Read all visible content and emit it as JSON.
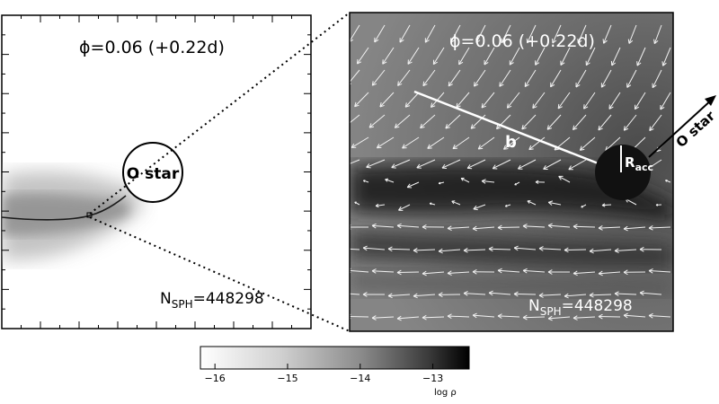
{
  "left_panel": {
    "phase_label": "ϕ=0.06 (+0.22d)",
    "star_label": "O star",
    "nsph_prefix": "N",
    "nsph_sub": "SPH",
    "nsph_value": "=448298"
  },
  "right_panel": {
    "phase_label": "ϕ=0.06 (+0.22d)",
    "b_label": "b",
    "racc_main": "R",
    "racc_sub": "acc",
    "direction_label": "O star",
    "nsph_prefix": "N",
    "nsph_sub": "SPH",
    "nsph_value": "=448298"
  },
  "colorbar": {
    "ticks": [
      "−16",
      "−15",
      "−14",
      "−13"
    ],
    "tick_values": [
      -16,
      -15,
      -14,
      -13
    ],
    "range": [
      -16.2,
      -12.5
    ],
    "label": "log ρ"
  },
  "colors": {
    "panel_border": "#000000",
    "field_background": "#6f6f6f",
    "arrow_color": "#f2f2f2",
    "star_fill_left": "#ffffff",
    "star_fill_right": "#111111"
  }
}
